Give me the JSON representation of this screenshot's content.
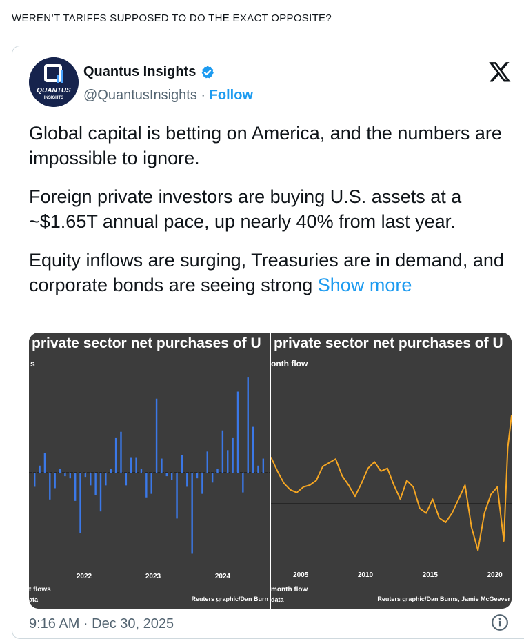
{
  "caption": "WEREN’T TARIFFS SUPPOSED TO DO THE EXACT OPPOSITE?",
  "tweet": {
    "author_name": "Quantus Insights",
    "handle": "@QuantusInsights",
    "separator": "·",
    "follow_label": "Follow",
    "avatar_text_main": "QUANTUS",
    "avatar_text_sub": "INSIGHTS",
    "paragraphs": [
      "Global capital is betting on America, and the numbers are impossible to ignore.",
      "Foreign private investors are buying U.S. assets at a ~$1.65T annual pace, up nearly 40% from last year.",
      "Equity inflows are surging, Treasuries are in demand, and corporate bonds are seeing strong"
    ],
    "show_more": "Show more",
    "timestamp": "9:16 AM · Dec 30, 2025",
    "accent": "#1d9bf0"
  },
  "chart_data": [
    {
      "type": "bar",
      "title": "private sector net purchases of U",
      "subtitle": "s",
      "footnote_left": "t flows",
      "footnote_left2": "ata",
      "credit": "Reuters graphic/Dan Burn",
      "credit2": "data",
      "tick_labels": [
        "2022",
        "2023",
        "2024"
      ],
      "bar_color": "#3b78e7",
      "values": [
        -20,
        10,
        28,
        -38,
        -22,
        5,
        -5,
        -8,
        -40,
        -86,
        -6,
        -18,
        -32,
        -55,
        -18,
        5,
        50,
        58,
        -18,
        22,
        22,
        5,
        -35,
        -30,
        105,
        20,
        -5,
        -10,
        -65,
        25,
        -20,
        -115,
        -8,
        -30,
        30,
        -14,
        5,
        60,
        32,
        50,
        115,
        -28,
        135,
        65,
        10,
        20
      ],
      "ylim": [
        -140,
        140
      ]
    },
    {
      "type": "line",
      "title": "private sector net purchases of U",
      "subtitle": "onth flow",
      "footnote_left": "month flow",
      "credit": "Reuters graphic/Dan Burns, Jamie McGeever",
      "tick_labels": [
        "2005",
        "2010",
        "2015",
        "2020"
      ],
      "line_color": "#f5a623",
      "x_range": [
        2002.7,
        2021.3
      ],
      "ylim": [
        -60,
        115
      ],
      "x": [
        2002.7,
        2003.2,
        2003.7,
        2004.2,
        2004.7,
        2005.2,
        2005.7,
        2006.2,
        2006.7,
        2007.2,
        2007.7,
        2008.2,
        2008.7,
        2009.2,
        2009.7,
        2010.2,
        2010.7,
        2011.2,
        2011.7,
        2012.2,
        2012.7,
        2013.2,
        2013.7,
        2014.2,
        2014.7,
        2015.2,
        2015.7,
        2016.2,
        2016.7,
        2017.2,
        2017.7,
        2018.2,
        2018.7,
        2019.2,
        2019.7,
        2020.2,
        2020.7,
        2021.0,
        2021.3
      ],
      "y": [
        50,
        35,
        22,
        15,
        12,
        18,
        20,
        25,
        40,
        44,
        48,
        30,
        20,
        8,
        22,
        38,
        45,
        35,
        38,
        20,
        5,
        25,
        18,
        -5,
        -10,
        5,
        -15,
        -20,
        -10,
        5,
        20,
        -25,
        -50,
        -10,
        10,
        18,
        -40,
        60,
        95
      ]
    }
  ]
}
